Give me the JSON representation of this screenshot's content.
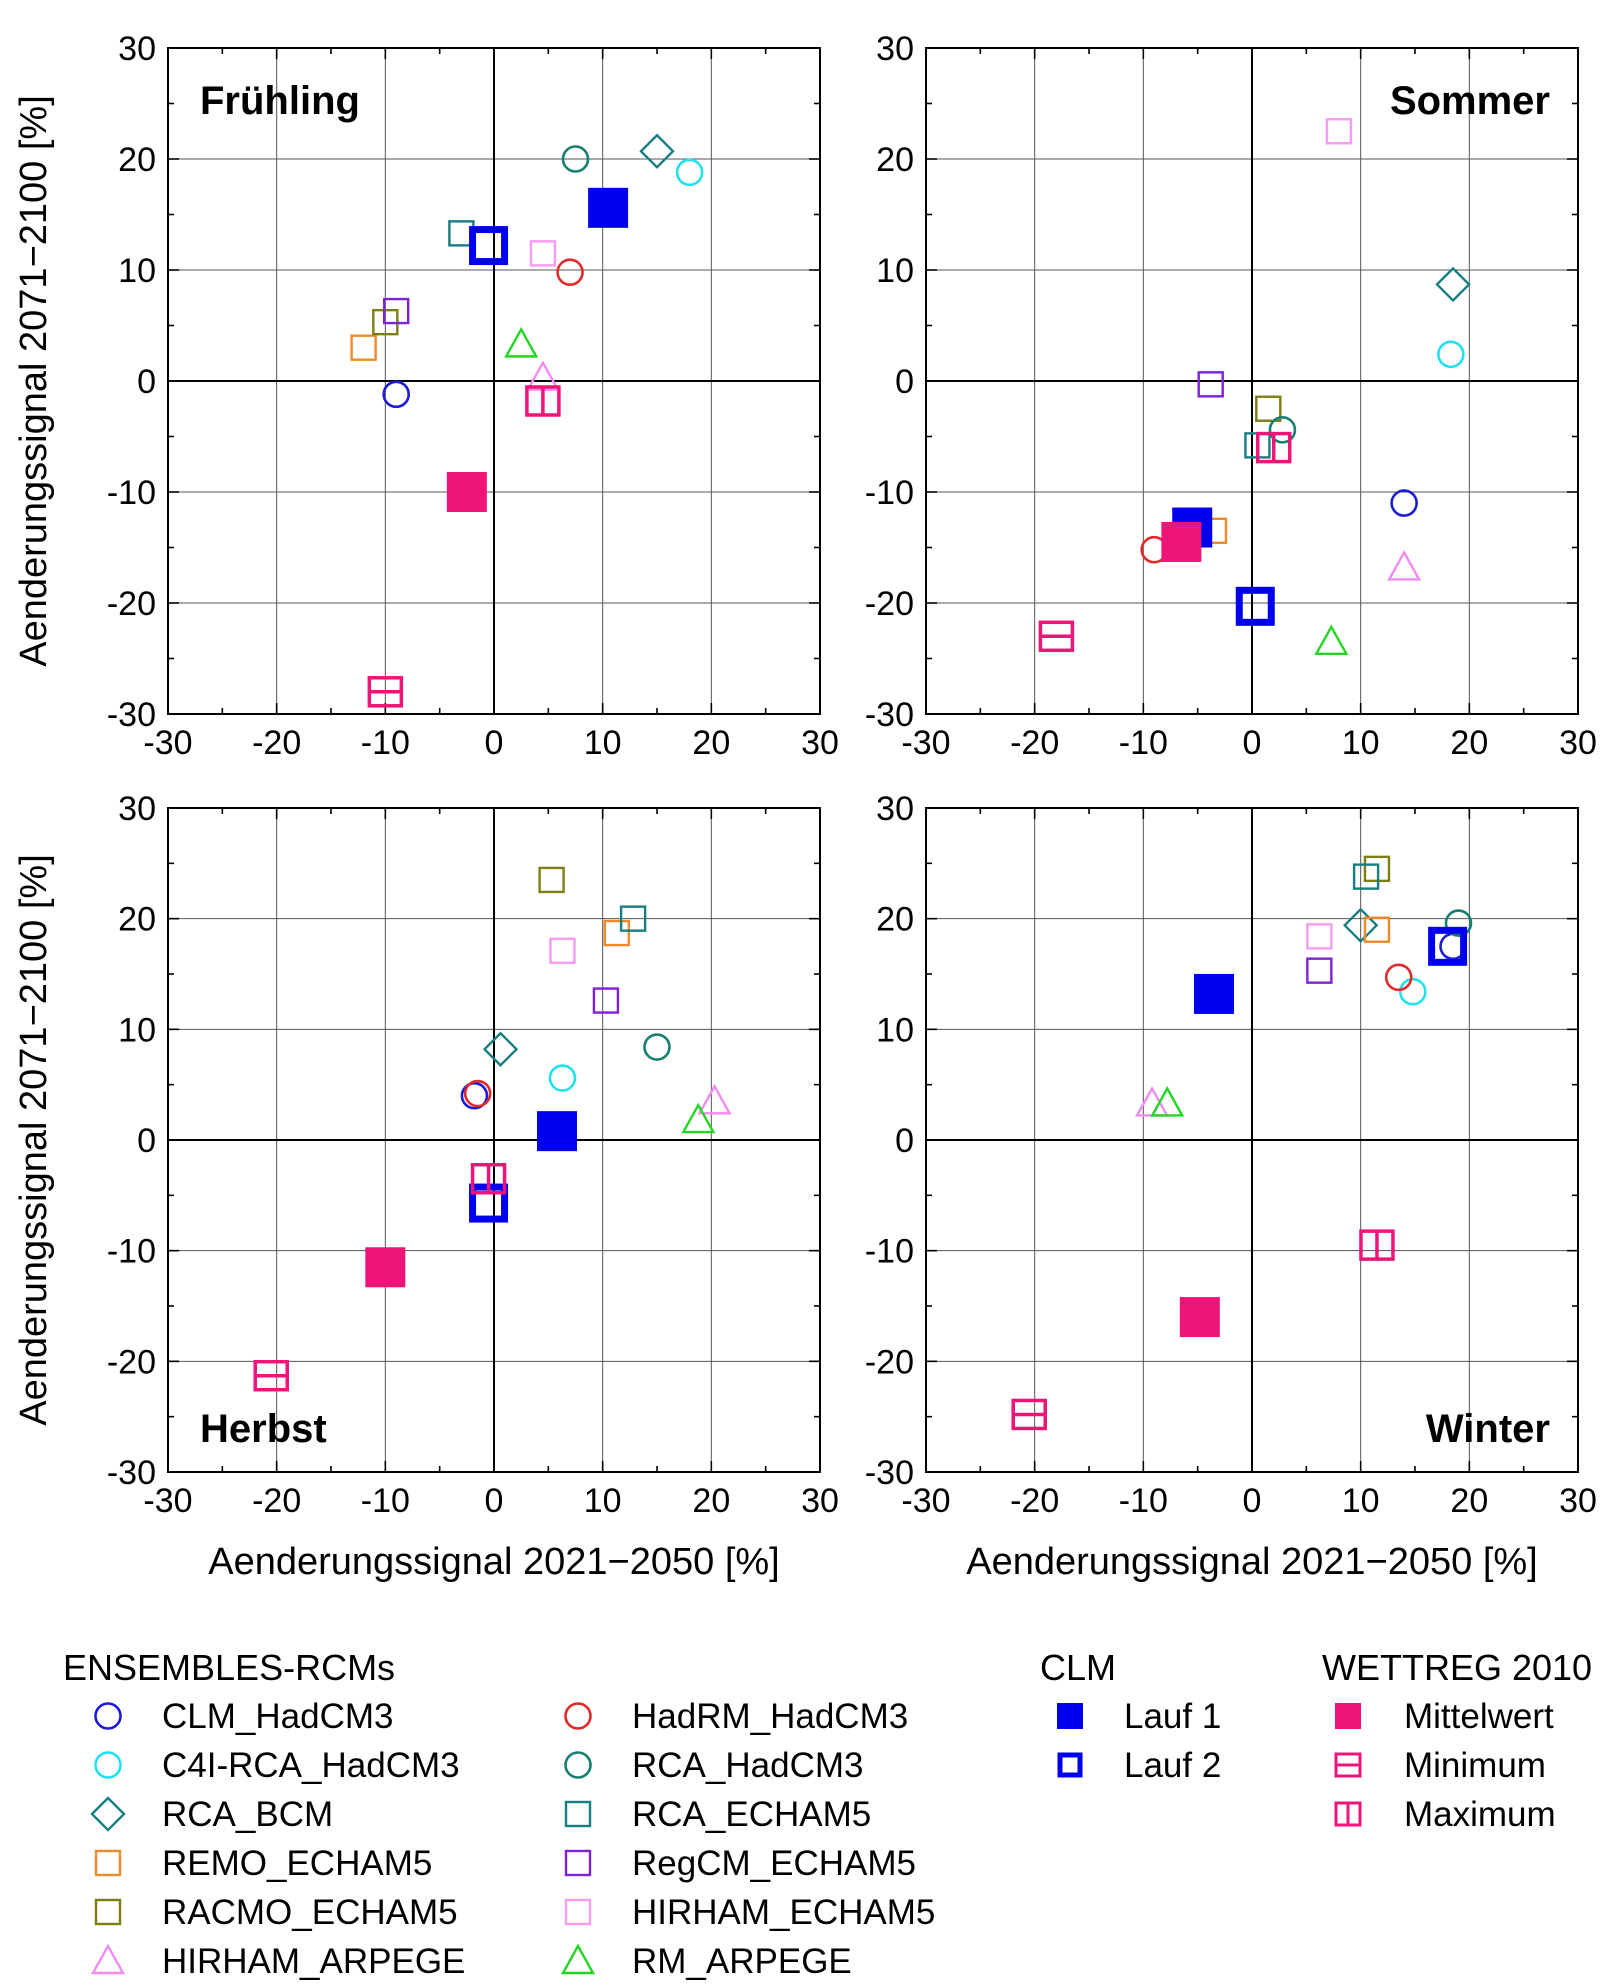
{
  "colors": {
    "CLM_HadCM3": "#1c1cd6",
    "C4I-RCA_HadCM3": "#22e0f0",
    "RCA_BCM": "#177f82",
    "REMO_ECHAM5": "#ee8a2a",
    "RACMO_ECHAM5": "#7d7d14",
    "HIRHAM_ARPEGE": "#f08cf0",
    "HadRM_HadCM3": "#e22a2a",
    "RCA_HadCM3": "#177f72",
    "RCA_ECHAM5": "#177f82",
    "RegCM_ECHAM5": "#7e22d6",
    "HIRHAM_ECHAM5": "#f59cf0",
    "RM_ARPEGE": "#22d622",
    "CLM_run": "#0000ee",
    "WETTREG": "#ee1478"
  },
  "chart_data": [
    {
      "type": "scatter",
      "title": "Frühling",
      "xlabel": "",
      "ylabel": "Aenderungssignal 2071−2100 [%]",
      "xlim": [
        -30,
        30
      ],
      "ylim": [
        -30,
        30
      ],
      "xticks": [
        "-30",
        "-20",
        "-10",
        "0",
        "10",
        "20",
        "30"
      ],
      "yticks": [
        "30",
        "20",
        "10",
        "0",
        "-10",
        "-20",
        "-30"
      ],
      "points": [
        {
          "series": "CLM_HadCM3",
          "x": -9,
          "y": -1.2
        },
        {
          "series": "C4I-RCA_HadCM3",
          "x": 18,
          "y": 18.8
        },
        {
          "series": "RCA_BCM",
          "x": 15,
          "y": 20.7
        },
        {
          "series": "REMO_ECHAM5",
          "x": -12,
          "y": 3
        },
        {
          "series": "RACMO_ECHAM5",
          "x": -10,
          "y": 5.3
        },
        {
          "series": "HIRHAM_ARPEGE",
          "x": 4.5,
          "y": 0.3
        },
        {
          "series": "HadRM_HadCM3",
          "x": 7,
          "y": 9.8
        },
        {
          "series": "RCA_HadCM3",
          "x": 7.5,
          "y": 20
        },
        {
          "series": "RCA_ECHAM5",
          "x": -3,
          "y": 13.3
        },
        {
          "series": "RegCM_ECHAM5",
          "x": -9,
          "y": 6.3
        },
        {
          "series": "HIRHAM_ECHAM5",
          "x": 4.5,
          "y": 11.5
        },
        {
          "series": "RM_ARPEGE",
          "x": 2.5,
          "y": 3.3
        },
        {
          "series": "Lauf 1",
          "x": 10.5,
          "y": 15.6
        },
        {
          "series": "Lauf 2",
          "x": -0.5,
          "y": 12.2
        },
        {
          "series": "Mittelwert",
          "x": -2.5,
          "y": -10
        },
        {
          "series": "Minimum",
          "x": -10,
          "y": -28
        },
        {
          "series": "Maximum",
          "x": 4.5,
          "y": -1.8
        }
      ]
    },
    {
      "type": "scatter",
      "title": "Sommer",
      "xlabel": "",
      "ylabel": "",
      "xlim": [
        -30,
        30
      ],
      "ylim": [
        -30,
        30
      ],
      "xticks": [
        "-30",
        "-20",
        "-10",
        "0",
        "10",
        "20",
        "30"
      ],
      "yticks": [
        "30",
        "20",
        "10",
        "0",
        "-10",
        "-20",
        "-30"
      ],
      "points": [
        {
          "series": "CLM_HadCM3",
          "x": 14,
          "y": -11
        },
        {
          "series": "C4I-RCA_HadCM3",
          "x": 18.3,
          "y": 2.4
        },
        {
          "series": "RCA_BCM",
          "x": 18.5,
          "y": 8.7
        },
        {
          "series": "REMO_ECHAM5",
          "x": -3.5,
          "y": -13.5
        },
        {
          "series": "RACMO_ECHAM5",
          "x": 1.5,
          "y": -2.5
        },
        {
          "series": "HIRHAM_ARPEGE",
          "x": 14,
          "y": -16.8
        },
        {
          "series": "HadRM_HadCM3",
          "x": -9,
          "y": -15.2
        },
        {
          "series": "RCA_HadCM3",
          "x": 2.8,
          "y": -4.4
        },
        {
          "series": "RCA_ECHAM5",
          "x": 0.5,
          "y": -5.8
        },
        {
          "series": "RegCM_ECHAM5",
          "x": -3.8,
          "y": -0.3
        },
        {
          "series": "HIRHAM_ECHAM5",
          "x": 8,
          "y": 22.5
        },
        {
          "series": "RM_ARPEGE",
          "x": 7.3,
          "y": -23.5
        },
        {
          "series": "Lauf 1",
          "x": -5.5,
          "y": -13.2
        },
        {
          "series": "Lauf 2",
          "x": 0.3,
          "y": -20.3
        },
        {
          "series": "Mittelwert",
          "x": -6.5,
          "y": -14.5
        },
        {
          "series": "Minimum",
          "x": -18,
          "y": -23
        },
        {
          "series": "Maximum",
          "x": 2,
          "y": -6
        }
      ]
    },
    {
      "type": "scatter",
      "title": "Herbst",
      "xlabel": "Aenderungssignal 2021−2050 [%]",
      "ylabel": "Aenderungssignal 2071−2100 [%]",
      "xlim": [
        -30,
        30
      ],
      "ylim": [
        -30,
        30
      ],
      "xticks": [
        "-30",
        "-20",
        "-10",
        "0",
        "10",
        "20",
        "30"
      ],
      "yticks": [
        "30",
        "20",
        "10",
        "0",
        "-10",
        "-20",
        "-30"
      ],
      "points": [
        {
          "series": "CLM_HadCM3",
          "x": -1.8,
          "y": 4
        },
        {
          "series": "C4I-RCA_HadCM3",
          "x": 6.3,
          "y": 5.6
        },
        {
          "series": "RCA_BCM",
          "x": 0.6,
          "y": 8.2
        },
        {
          "series": "REMO_ECHAM5",
          "x": 11.3,
          "y": 18.7
        },
        {
          "series": "RACMO_ECHAM5",
          "x": 5.3,
          "y": 23.5
        },
        {
          "series": "HIRHAM_ARPEGE",
          "x": 20.3,
          "y": 3.5
        },
        {
          "series": "HadRM_HadCM3",
          "x": -1.5,
          "y": 4.2
        },
        {
          "series": "RCA_HadCM3",
          "x": 15,
          "y": 8.4
        },
        {
          "series": "RCA_ECHAM5",
          "x": 12.8,
          "y": 20
        },
        {
          "series": "RegCM_ECHAM5",
          "x": 10.3,
          "y": 12.6
        },
        {
          "series": "HIRHAM_ECHAM5",
          "x": 6.3,
          "y": 17.1
        },
        {
          "series": "RM_ARPEGE",
          "x": 18.8,
          "y": 1.8
        },
        {
          "series": "Lauf 1",
          "x": 5.8,
          "y": 0.8
        },
        {
          "series": "Lauf 2",
          "x": -0.5,
          "y": -5.7
        },
        {
          "series": "Mittelwert",
          "x": -10,
          "y": -11.5
        },
        {
          "series": "Minimum",
          "x": -20.5,
          "y": -21.3
        },
        {
          "series": "Maximum",
          "x": -0.5,
          "y": -3.5
        }
      ]
    },
    {
      "type": "scatter",
      "title": "Winter",
      "xlabel": "Aenderungssignal 2021−2050 [%]",
      "ylabel": "",
      "xlim": [
        -30,
        30
      ],
      "ylim": [
        -30,
        30
      ],
      "xticks": [
        "-30",
        "-20",
        "-10",
        "0",
        "10",
        "20",
        "30"
      ],
      "yticks": [
        "30",
        "20",
        "10",
        "0",
        "-10",
        "-20",
        "-30"
      ],
      "points": [
        {
          "series": "CLM_HadCM3",
          "x": 18.5,
          "y": 17.5
        },
        {
          "series": "C4I-RCA_HadCM3",
          "x": 14.8,
          "y": 13.4
        },
        {
          "series": "RCA_BCM",
          "x": 10,
          "y": 19.4
        },
        {
          "series": "REMO_ECHAM5",
          "x": 11.5,
          "y": 19
        },
        {
          "series": "RACMO_ECHAM5",
          "x": 11.5,
          "y": 24.5
        },
        {
          "series": "HIRHAM_ARPEGE",
          "x": -9.2,
          "y": 3.3
        },
        {
          "series": "HadRM_HadCM3",
          "x": 13.5,
          "y": 14.7
        },
        {
          "series": "RCA_HadCM3",
          "x": 19,
          "y": 19.6
        },
        {
          "series": "RCA_ECHAM5",
          "x": 10.5,
          "y": 23.8
        },
        {
          "series": "RegCM_ECHAM5",
          "x": 6.2,
          "y": 15.3
        },
        {
          "series": "HIRHAM_ECHAM5",
          "x": 6.2,
          "y": 18.4
        },
        {
          "series": "RM_ARPEGE",
          "x": -7.8,
          "y": 3.3
        },
        {
          "series": "Lauf 1",
          "x": -3.5,
          "y": 13.2
        },
        {
          "series": "Lauf 2",
          "x": 18,
          "y": 17.5
        },
        {
          "series": "Mittelwert",
          "x": -4.8,
          "y": -16
        },
        {
          "series": "Minimum",
          "x": -20.5,
          "y": -24.8
        },
        {
          "series": "Maximum",
          "x": 11.5,
          "y": -9.5
        }
      ]
    }
  ],
  "legend": {
    "groups": [
      {
        "title": "ENSEMBLES-RCMs",
        "items": [
          {
            "label": "CLM_HadCM3",
            "key": "CLM_HadCM3",
            "marker": "circle"
          },
          {
            "label": "C4I-RCA_HadCM3",
            "key": "C4I-RCA_HadCM3",
            "marker": "circle"
          },
          {
            "label": "RCA_BCM",
            "key": "RCA_BCM",
            "marker": "diamond"
          },
          {
            "label": "REMO_ECHAM5",
            "key": "REMO_ECHAM5",
            "marker": "square"
          },
          {
            "label": "RACMO_ECHAM5",
            "key": "RACMO_ECHAM5",
            "marker": "square"
          },
          {
            "label": "HIRHAM_ARPEGE",
            "key": "HIRHAM_ARPEGE",
            "marker": "triangle"
          },
          {
            "label": "HadRM_HadCM3",
            "key": "HadRM_HadCM3",
            "marker": "circle"
          },
          {
            "label": "RCA_HadCM3",
            "key": "RCA_HadCM3",
            "marker": "circle"
          },
          {
            "label": "RCA_ECHAM5",
            "key": "RCA_ECHAM5",
            "marker": "square"
          },
          {
            "label": "RegCM_ECHAM5",
            "key": "RegCM_ECHAM5",
            "marker": "square"
          },
          {
            "label": "HIRHAM_ECHAM5",
            "key": "HIRHAM_ECHAM5",
            "marker": "square"
          },
          {
            "label": "RM_ARPEGE",
            "key": "RM_ARPEGE",
            "marker": "triangle"
          }
        ]
      },
      {
        "title": "CLM",
        "items": [
          {
            "label": "Lauf 1",
            "key": "Lauf 1",
            "marker": "filled-square"
          },
          {
            "label": "Lauf 2",
            "key": "Lauf 2",
            "marker": "thick-square"
          }
        ]
      },
      {
        "title": "WETTREG 2010",
        "items": [
          {
            "label": "Mittelwert",
            "key": "Mittelwert",
            "marker": "filled-square"
          },
          {
            "label": "Minimum",
            "key": "Minimum",
            "marker": "minimum"
          },
          {
            "label": "Maximum",
            "key": "Maximum",
            "marker": "maximum"
          }
        ]
      }
    ]
  }
}
